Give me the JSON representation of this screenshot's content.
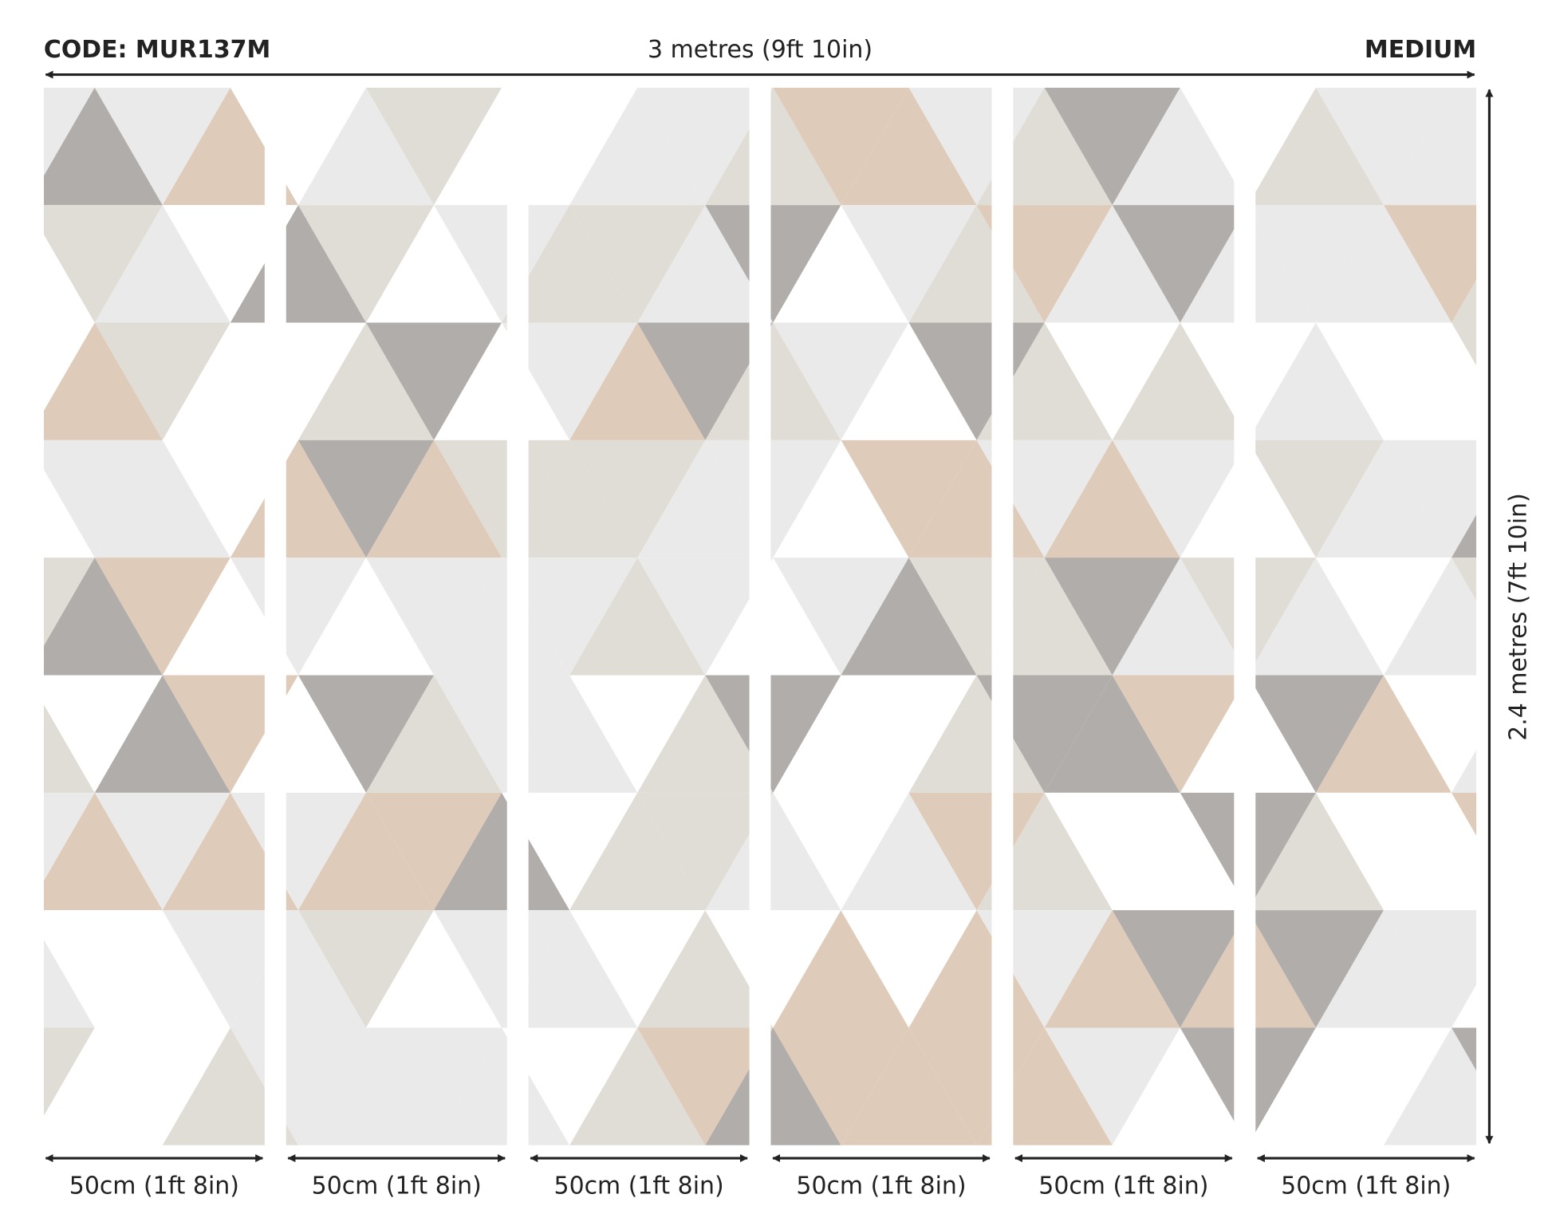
{
  "header": {
    "code": "CODE: MUR137M",
    "width": "3 metres (9ft 10in)",
    "size": "MEDIUM"
  },
  "height": "2.4 metres (7ft 10in)",
  "panels": [
    "50cm (1ft 8in)",
    "50cm (1ft 8in)",
    "50cm (1ft 8in)",
    "50cm (1ft 8in)",
    "50cm (1ft 8in)",
    "50cm (1ft 8in)"
  ]
}
